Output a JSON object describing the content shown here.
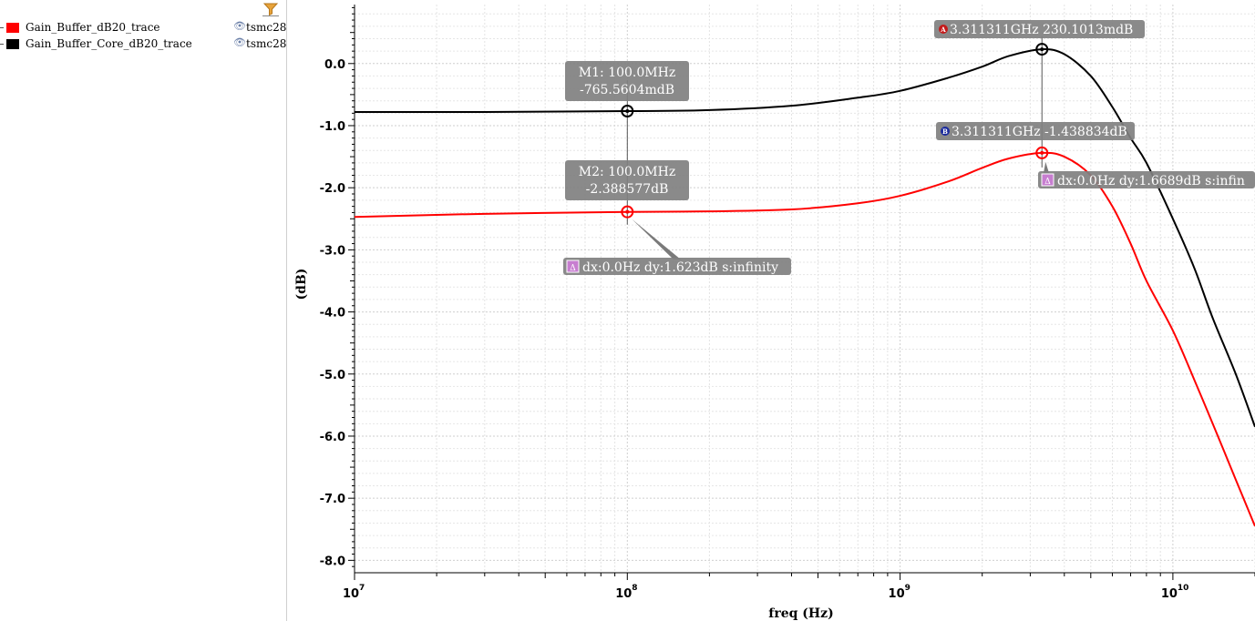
{
  "legend": {
    "items": [
      {
        "name": "Gain_Buffer_dB20_trace",
        "color": "#ff0000",
        "source": "tsmc28",
        "icon": "eye-icon"
      },
      {
        "name": "Gain_Buffer_Core_dB20_trace",
        "color": "#000000",
        "source": "tsmc28",
        "icon": "eye-icon"
      }
    ],
    "filter_icon": "funnel-icon"
  },
  "markers": {
    "M1": {
      "line1": "M1: 100.0MHz",
      "line2": "-765.5604mdB"
    },
    "M2": {
      "line1": "M2: 100.0MHz",
      "line2": "-2.388577dB"
    },
    "A": {
      "badge": "A",
      "text": "3.311311GHz 230.1013mdB",
      "badge_color": "#c41a1a"
    },
    "B": {
      "badge": "B",
      "text": "3.311311GHz -1.438834dB",
      "badge_color": "#1a2a9c"
    },
    "delta_m": {
      "text": "dx:0.0Hz dy:1.623dB s:infinity"
    },
    "delta_ab": {
      "text": "dx:0.0Hz dy:1.6689dB s:infin"
    }
  },
  "chart_data": {
    "type": "line",
    "xlabel": "freq (Hz)",
    "ylabel": "(dB)",
    "x_scale": "log",
    "xlim": [
      10000000,
      20000000000
    ],
    "ylim": [
      -8.2,
      0.95
    ],
    "grid": true,
    "x_tick_labels": [
      {
        "value": 10000000,
        "base": "10",
        "exp": "7"
      },
      {
        "value": 100000000,
        "base": "10",
        "exp": "8"
      },
      {
        "value": 1000000000,
        "base": "10",
        "exp": "9"
      },
      {
        "value": 10000000000,
        "base": "10",
        "exp": "10"
      }
    ],
    "y_ticks": [
      0.0,
      -1.0,
      -2.0,
      -3.0,
      -4.0,
      -5.0,
      -6.0,
      -7.0,
      -8.0
    ],
    "y_tick_labels": [
      "0.0",
      "-1.0",
      "-2.0",
      "-3.0",
      "-4.0",
      "-5.0",
      "-6.0",
      "-7.0",
      "-8.0"
    ],
    "series": [
      {
        "name": "Gain_Buffer_Core_dB20_trace",
        "color": "#000000",
        "points": [
          [
            10000000,
            -0.78
          ],
          [
            30000000,
            -0.78
          ],
          [
            100000000,
            -0.766
          ],
          [
            200000000,
            -0.75
          ],
          [
            400000000,
            -0.68
          ],
          [
            700000000,
            -0.55
          ],
          [
            1000000000,
            -0.44
          ],
          [
            1500000000,
            -0.23
          ],
          [
            2000000000,
            -0.05
          ],
          [
            2500000000,
            0.12
          ],
          [
            3311311000,
            0.23
          ],
          [
            4000000000,
            0.15
          ],
          [
            5000000000,
            -0.2
          ],
          [
            6000000000,
            -0.7
          ],
          [
            7000000000,
            -1.2
          ],
          [
            8000000000,
            -1.6
          ],
          [
            10000000000,
            -2.5
          ],
          [
            12000000000,
            -3.3
          ],
          [
            14000000000,
            -4.1
          ],
          [
            17000000000,
            -5.0
          ],
          [
            20000000000,
            -5.85
          ]
        ]
      },
      {
        "name": "Gain_Buffer_dB20_trace",
        "color": "#ff0000",
        "points": [
          [
            10000000,
            -2.47
          ],
          [
            30000000,
            -2.42
          ],
          [
            100000000,
            -2.389
          ],
          [
            200000000,
            -2.38
          ],
          [
            400000000,
            -2.35
          ],
          [
            700000000,
            -2.25
          ],
          [
            1000000000,
            -2.13
          ],
          [
            1500000000,
            -1.9
          ],
          [
            2000000000,
            -1.68
          ],
          [
            2500000000,
            -1.53
          ],
          [
            3311311000,
            -1.439
          ],
          [
            4000000000,
            -1.5
          ],
          [
            5000000000,
            -1.8
          ],
          [
            6000000000,
            -2.3
          ],
          [
            7000000000,
            -2.9
          ],
          [
            8000000000,
            -3.5
          ],
          [
            10000000000,
            -4.3
          ],
          [
            12000000000,
            -5.1
          ],
          [
            14000000000,
            -5.8
          ],
          [
            17000000000,
            -6.7
          ],
          [
            20000000000,
            -7.45
          ]
        ]
      }
    ],
    "marker_points": [
      {
        "label": "M1",
        "x": 100000000,
        "y": -0.7655604,
        "color": "#000000"
      },
      {
        "label": "M2",
        "x": 100000000,
        "y": -2.388577,
        "color": "#ff0000"
      },
      {
        "label": "A",
        "x": 3311311000,
        "y": 0.2301013,
        "color": "#000000"
      },
      {
        "label": "B",
        "x": 3311311000,
        "y": -1.438834,
        "color": "#ff0000"
      }
    ]
  }
}
